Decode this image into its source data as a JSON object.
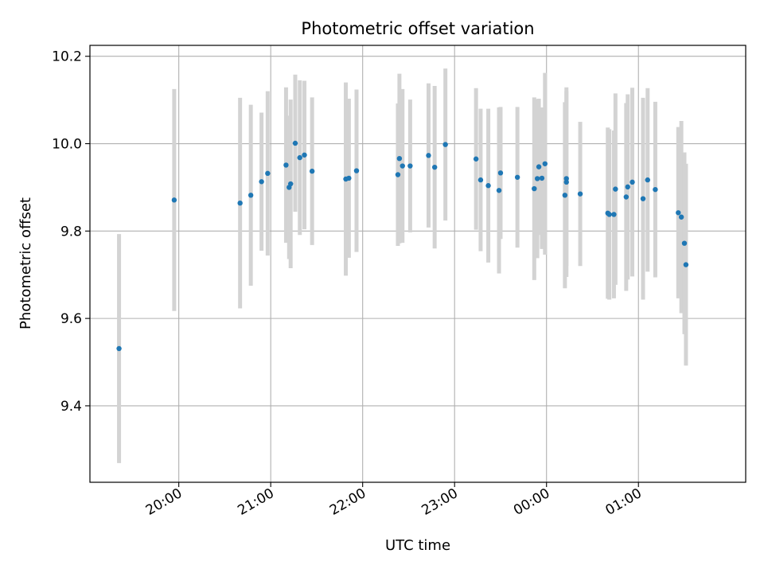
{
  "chart_data": {
    "type": "scatter",
    "title": "Photometric offset variation",
    "xlabel": "UTC time",
    "ylabel": "Photometric offset",
    "grid": true,
    "legend": "none",
    "x_axis_kind": "time",
    "xlim": [
      "19:02",
      "02:10"
    ],
    "ylim": [
      9.225,
      10.225
    ],
    "x_ticks": [
      "20:00",
      "21:00",
      "22:00",
      "23:00",
      "00:00",
      "01:00"
    ],
    "y_ticks": [
      "9.4",
      "9.6",
      "9.8",
      "10.0",
      "10.2"
    ],
    "y_tick_values": [
      9.4,
      9.6,
      9.8,
      10.0,
      10.2
    ],
    "colors": {
      "points": "#1f77b4",
      "error_bars": "#d3d3d3",
      "grid": "#b0b0b0"
    },
    "series": [
      {
        "x": [
          "19:21",
          "19:57",
          "20:40",
          "20:47",
          "20:54",
          "20:58",
          "21:10",
          "21:12",
          "21:13",
          "21:16",
          "21:19",
          "21:22",
          "21:27",
          "21:49",
          "21:51",
          "21:56",
          "22:23",
          "22:24",
          "22:26",
          "22:31",
          "22:43",
          "22:47",
          "22:54",
          "23:14",
          "23:17",
          "23:22",
          "23:29",
          "23:30",
          "23:41",
          "23:52",
          "23:55",
          "23:57",
          "23:59",
          "23:54",
          "00:12",
          "00:13",
          "00:13",
          "00:22",
          "00:40",
          "00:41",
          "00:44",
          "00:45",
          "00:52",
          "00:53",
          "00:56",
          "01:03",
          "01:06",
          "01:11",
          "01:26",
          "01:28",
          "01:30",
          "01:31"
        ],
        "y": [
          9.531,
          9.871,
          9.864,
          9.882,
          9.913,
          9.932,
          9.951,
          9.9,
          9.908,
          10.001,
          9.968,
          9.974,
          9.937,
          9.919,
          9.921,
          9.938,
          9.929,
          9.966,
          9.949,
          9.949,
          9.973,
          9.946,
          9.998,
          9.965,
          9.917,
          9.904,
          9.893,
          9.933,
          9.923,
          9.897,
          9.947,
          9.921,
          9.954,
          9.92,
          9.882,
          9.912,
          9.92,
          9.885,
          9.841,
          9.838,
          9.838,
          9.896,
          9.878,
          9.901,
          9.912,
          9.874,
          9.917,
          9.895,
          9.842,
          9.832,
          9.772,
          9.723
        ],
        "yerr": [
          0.262,
          0.254,
          0.241,
          0.207,
          0.158,
          0.188,
          0.178,
          0.164,
          0.193,
          0.157,
          0.177,
          0.17,
          0.169,
          0.221,
          0.182,
          0.186,
          0.163,
          0.194,
          0.176,
          0.152,
          0.165,
          0.186,
          0.174,
          0.162,
          0.163,
          0.176,
          0.19,
          0.151,
          0.161,
          0.209,
          0.156,
          0.162,
          0.208,
          0.182,
          0.213,
          0.217,
          0.2,
          0.165,
          0.196,
          0.195,
          0.192,
          0.219,
          0.215,
          0.212,
          0.216,
          0.231,
          0.21,
          0.201,
          0.196,
          0.22,
          0.208,
          0.231
        ]
      }
    ]
  }
}
